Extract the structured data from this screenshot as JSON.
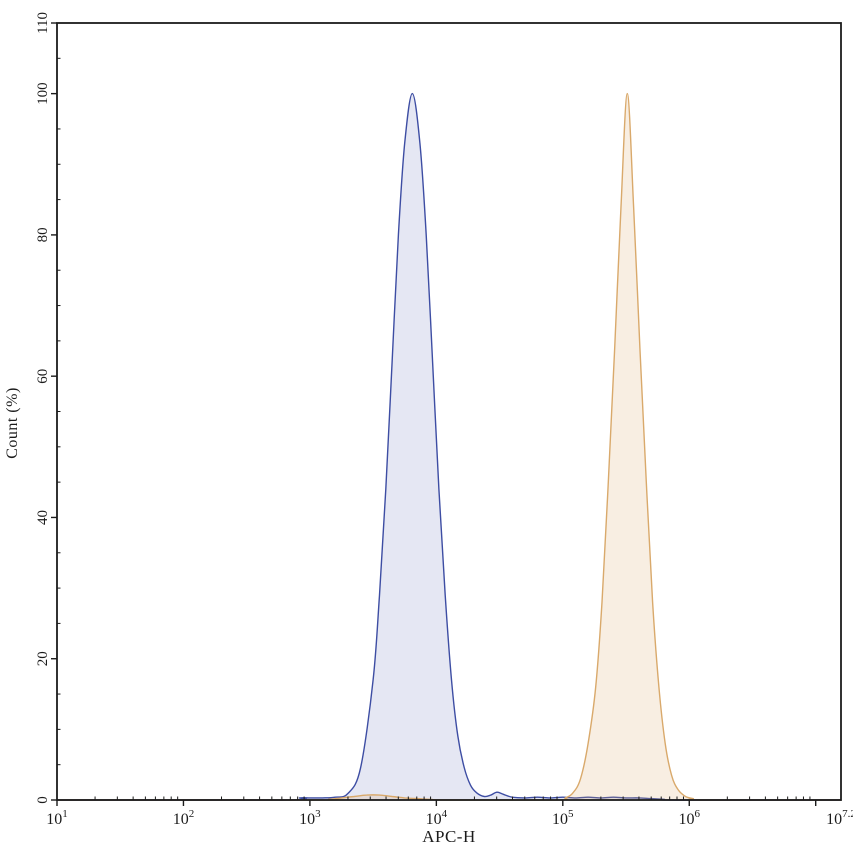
{
  "chart_data": {
    "type": "area",
    "variant": "flow-cytometry-histogram-overlay",
    "title": "",
    "xlabel": "APC-H",
    "ylabel": "Count (%)",
    "x_scale": "log10",
    "x_log10_range": [
      1,
      7.2
    ],
    "ylim": [
      0,
      110
    ],
    "grid": false,
    "legend": "none",
    "axis_color": "#1b1b1b",
    "x_ticks": {
      "mantissa": "10",
      "major_log10": [
        1,
        2,
        3,
        4,
        5,
        6,
        7
      ],
      "labeled": [
        {
          "log10": 1,
          "exponent": "1"
        },
        {
          "log10": 2,
          "exponent": "2"
        },
        {
          "log10": 3,
          "exponent": "3"
        },
        {
          "log10": 4,
          "exponent": "4"
        },
        {
          "log10": 5,
          "exponent": "5"
        },
        {
          "log10": 6,
          "exponent": "6"
        },
        {
          "log10": 7.2,
          "exponent": "7.2"
        }
      ],
      "minor_log_mantissas": [
        2,
        3,
        4,
        5,
        6,
        7,
        8,
        9
      ]
    },
    "y_ticks": {
      "major": [
        0,
        20,
        40,
        60,
        80,
        100,
        110
      ],
      "labels": [
        "0",
        "20",
        "40",
        "60",
        "80",
        "100",
        "110"
      ],
      "minor_step": 5
    },
    "series": [
      {
        "name": "blue-peak",
        "stroke": "#3D4DA3",
        "fill": "rgba(92,104,182,0.16)",
        "peak": {
          "log10_x": 3.81,
          "y": 100
        },
        "points": [
          [
            1.0,
            0
          ],
          [
            2.8,
            0
          ],
          [
            2.92,
            0.3
          ],
          [
            3.0,
            0.3
          ],
          [
            3.1,
            0.3
          ],
          [
            3.2,
            0.4
          ],
          [
            3.3,
            0.9
          ],
          [
            3.4,
            4.5
          ],
          [
            3.5,
            17
          ],
          [
            3.55,
            29
          ],
          [
            3.6,
            44
          ],
          [
            3.65,
            62
          ],
          [
            3.7,
            80
          ],
          [
            3.75,
            93
          ],
          [
            3.81,
            100
          ],
          [
            3.87,
            93
          ],
          [
            3.92,
            80
          ],
          [
            3.97,
            62
          ],
          [
            4.02,
            44
          ],
          [
            4.07,
            29
          ],
          [
            4.12,
            17
          ],
          [
            4.17,
            9
          ],
          [
            4.22,
            4.6
          ],
          [
            4.27,
            2.1
          ],
          [
            4.32,
            1.0
          ],
          [
            4.38,
            0.5
          ],
          [
            4.43,
            0.7
          ],
          [
            4.48,
            1.1
          ],
          [
            4.53,
            0.8
          ],
          [
            4.6,
            0.4
          ],
          [
            4.7,
            0.3
          ],
          [
            4.8,
            0.4
          ],
          [
            4.9,
            0.3
          ],
          [
            5.0,
            0.4
          ],
          [
            5.1,
            0.3
          ],
          [
            5.2,
            0.4
          ],
          [
            5.3,
            0.3
          ],
          [
            5.4,
            0.4
          ],
          [
            5.5,
            0.3
          ],
          [
            5.6,
            0.3
          ],
          [
            5.7,
            0.2
          ],
          [
            5.8,
            0.1
          ],
          [
            5.9,
            0
          ],
          [
            7.2,
            0
          ]
        ]
      },
      {
        "name": "orange-peak",
        "stroke": "#D9A96B",
        "fill": "rgba(222,172,110,0.20)",
        "peak": {
          "log10_x": 5.51,
          "y": 100
        },
        "points": [
          [
            1.0,
            0
          ],
          [
            3.05,
            0
          ],
          [
            3.15,
            0.1
          ],
          [
            3.25,
            0.3
          ],
          [
            3.35,
            0.5
          ],
          [
            3.45,
            0.7
          ],
          [
            3.55,
            0.7
          ],
          [
            3.65,
            0.5
          ],
          [
            3.75,
            0.3
          ],
          [
            3.85,
            0.2
          ],
          [
            3.95,
            0.1
          ],
          [
            4.1,
            0
          ],
          [
            4.95,
            0
          ],
          [
            5.02,
            0.3
          ],
          [
            5.08,
            1
          ],
          [
            5.14,
            3
          ],
          [
            5.2,
            8
          ],
          [
            5.26,
            16
          ],
          [
            5.31,
            28
          ],
          [
            5.36,
            45
          ],
          [
            5.41,
            64
          ],
          [
            5.46,
            84
          ],
          [
            5.51,
            100
          ],
          [
            5.56,
            84
          ],
          [
            5.61,
            64
          ],
          [
            5.66,
            45
          ],
          [
            5.71,
            28
          ],
          [
            5.76,
            16
          ],
          [
            5.81,
            8
          ],
          [
            5.86,
            3.5
          ],
          [
            5.91,
            1.5
          ],
          [
            5.97,
            0.5
          ],
          [
            6.03,
            0.2
          ],
          [
            6.1,
            0
          ],
          [
            7.2,
            0
          ]
        ]
      }
    ]
  }
}
